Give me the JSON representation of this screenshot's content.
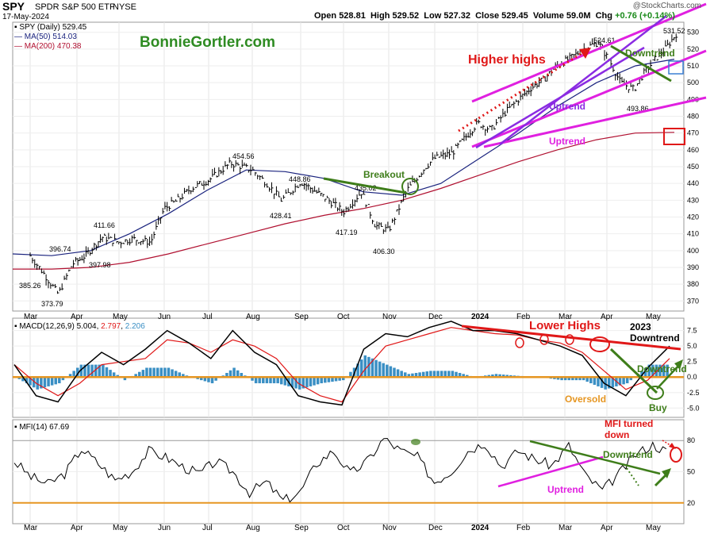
{
  "header": {
    "symbol": "SPY",
    "name": "SPDR S&P 500 ETF",
    "exchange": "NYSE",
    "date": "17-May-2024",
    "open_label": "Open",
    "open": "528.81",
    "high_label": "High",
    "high": "529.52",
    "low_label": "Low",
    "low": "527.32",
    "close_label": "Close",
    "close": "529.45",
    "volume_label": "Volume",
    "volume": "59.0M",
    "chg_label": "Chg",
    "chg": "+0.76 (+0.14%)",
    "watermark": "@StockCharts.com",
    "brand": "BonnieGortler.com"
  },
  "legend": {
    "price": "SPY (Daily) 529.45",
    "ma50": "MA(50) 514.03",
    "ma200": "MA(200) 470.38",
    "macd_name": "MACD(12,26,9)",
    "macd_vals": [
      "5.004",
      "2.797",
      "2.206"
    ],
    "mfi": "MFI(14) 67.69"
  },
  "colors": {
    "magenta": "#e020e0",
    "purple": "#8a2be2",
    "green": "#3e7d1a",
    "red": "#e01818",
    "orange": "#e69622",
    "ma50": "#1a237e",
    "ma200": "#b01030",
    "hist": "#3a8fc4"
  },
  "chart_data": [
    {
      "type": "line",
      "title": "SPY (Daily)",
      "x_axis": [
        "Mar",
        "Apr",
        "May",
        "Jun",
        "Jul",
        "Aug",
        "Sep",
        "Oct",
        "Nov",
        "Dec",
        "2024",
        "Feb",
        "Mar",
        "Apr",
        "May"
      ],
      "y_ticks": [
        370,
        380,
        390,
        400,
        410,
        420,
        430,
        440,
        450,
        460,
        470,
        480,
        490,
        500,
        510,
        520,
        530
      ],
      "ylim": [
        364,
        536
      ],
      "price_points": {
        "x_month_index": [
          0,
          0.3,
          0.6,
          0.9,
          1.2,
          1.6,
          2.0,
          2.3,
          2.7,
          3.0,
          3.3,
          3.6,
          4.0,
          4.5,
          5.0,
          5.3,
          5.6,
          6.0,
          6.3,
          6.6,
          7.0,
          7.4,
          7.7,
          8.0,
          8.4,
          8.8,
          9.0,
          9.4,
          9.8,
          10.0,
          10.3,
          10.6,
          10.9,
          11.2,
          11.5,
          11.8,
          12.1,
          12.5,
          12.8,
          13.1,
          13.3,
          13.6,
          13.8,
          14.1,
          14.3,
          14.55
        ],
        "close": [
          397,
          386,
          374,
          392,
          397,
          408,
          405,
          407,
          405,
          425,
          430,
          437,
          442,
          452,
          448,
          440,
          430,
          441,
          436,
          431,
          423,
          435,
          415,
          412,
          436,
          450,
          455,
          458,
          470,
          476,
          472,
          482,
          490,
          497,
          502,
          510,
          514,
          521,
          524,
          511,
          500,
          496,
          505,
          515,
          520,
          529
        ]
      },
      "series": [
        {
          "name": "MA(50)",
          "values": [
            398,
            397,
            400,
            410,
            422,
            436,
            448,
            447,
            443,
            435,
            433,
            440,
            455,
            470,
            486,
            500,
            510,
            514
          ]
        },
        {
          "name": "MA(200)",
          "values": [
            389,
            389,
            390,
            393,
            398,
            404,
            410,
            416,
            421,
            425,
            430,
            437,
            445,
            453,
            460,
            466,
            470,
            470.4
          ]
        }
      ],
      "price_labels": [
        "385.26",
        "373.79",
        "396.74",
        "397.98",
        "411.66",
        "454.56",
        "448.86",
        "428.41",
        "417.19",
        "435.02",
        "406.30",
        "524.61",
        "493.86",
        "531.52"
      ],
      "annotations": [
        "Higher highs",
        "Uptrend",
        "Uptrend",
        "Downtrend",
        "Breakout"
      ]
    },
    {
      "type": "line",
      "title": "MACD(12,26,9)",
      "y_ticks": [
        "7.5",
        "5.0",
        "2.5",
        "0.0",
        "-2.5",
        "-5.0"
      ],
      "ylim": [
        -6.5,
        9.5
      ],
      "series": [
        {
          "name": "MACD",
          "values": [
            2,
            -3,
            -4,
            1,
            4,
            2,
            4.5,
            7.5,
            5.5,
            3,
            7.5,
            4,
            2,
            -3,
            -4,
            -4.5,
            4.5,
            7,
            6.5,
            8,
            9,
            7.5,
            7.5,
            7,
            6,
            5,
            3.5,
            -1,
            -3,
            1.5,
            5
          ]
        },
        {
          "name": "Signal",
          "values": [
            2,
            -1,
            -3,
            -1,
            2,
            2.5,
            3,
            6,
            5.5,
            4,
            6,
            5,
            3,
            -1,
            -3,
            -4,
            1,
            5,
            6,
            7,
            8,
            7.5,
            7,
            6.8,
            6,
            5.5,
            4,
            1,
            -2,
            -0.5,
            3
          ]
        }
      ],
      "annotations": [
        "Lower Highs",
        "2023 Downtrend",
        "Downtrend",
        "Oversold",
        "Buy"
      ]
    },
    {
      "type": "line",
      "title": "MFI(14)",
      "y_ticks": [
        20,
        50,
        80
      ],
      "ylim": [
        0,
        100
      ],
      "series": [
        {
          "name": "MFI",
          "values": [
            60,
            45,
            38,
            48,
            72,
            58,
            42,
            50,
            70,
            64,
            55,
            48,
            60,
            50,
            30,
            40,
            22,
            30,
            58,
            70,
            48,
            60,
            82,
            70,
            64,
            40,
            50,
            70,
            78,
            55,
            70,
            62,
            56,
            75,
            46,
            32,
            48,
            67,
            76,
            68
          ]
        }
      ],
      "annotations": [
        "MFI turned down",
        "Downtrend",
        "Uptrend"
      ]
    }
  ]
}
